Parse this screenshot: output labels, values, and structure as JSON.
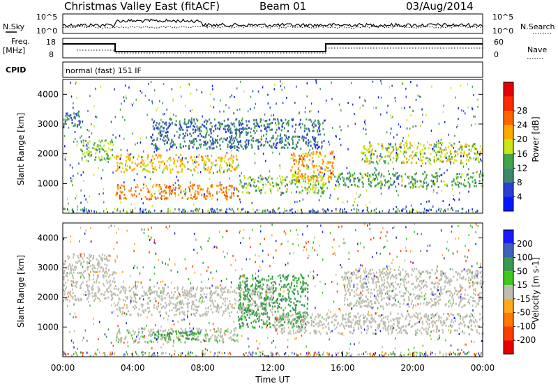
{
  "header": {
    "station": "Christmas Valley East (fitACF)",
    "beam": "Beam 01",
    "date": "03/Aug/2014"
  },
  "side_labels": {
    "nsky": "N.Sky",
    "nsearch": "N.Search",
    "freq_top": "Freq.",
    "freq_unit": "[MHz]",
    "nave": "Nave",
    "cpid": "CPID"
  },
  "noise_axis": {
    "left_top": "10^5",
    "left_bottom": "10^0",
    "right_top": "10^5",
    "right_bottom": "10^0"
  },
  "freq_axis": {
    "left_ticks": [
      "18",
      "8"
    ],
    "right_ticks": [
      "60",
      "0"
    ]
  },
  "cpid_text": "normal (fast) 151 IF",
  "colors": {
    "power_scale": [
      "#0019ff",
      "#2b3fd0",
      "#3c8a6a",
      "#41a64a",
      "#c8e619",
      "#ffaa00",
      "#ff6400",
      "#ff2a00",
      "#e60000"
    ],
    "velocity_scale": [
      "#1a1aff",
      "#3f62b8",
      "#3a9a4f",
      "#41c81e",
      "#bdbdb0",
      "#ffaa19",
      "#ff7a00",
      "#ff3c00",
      "#e60000"
    ]
  },
  "chart_data": [
    {
      "type": "heatmap",
      "panel": "power",
      "ylabel": "Slant Range [km]",
      "yticks": [
        "1000",
        "2000",
        "3000",
        "4000"
      ],
      "ylim": [
        0,
        4500
      ],
      "xlim": [
        0,
        24
      ],
      "colorbar_label": "Power [dB]",
      "colorbar_ticks": [
        "4",
        "8",
        "12",
        "16",
        "20",
        "24",
        "28"
      ],
      "colorbar_range": [
        0,
        32
      ],
      "features": [
        {
          "t0": 0.0,
          "t1": 1.0,
          "r0": 2900,
          "r1": 3500,
          "level": 8
        },
        {
          "t0": 1.0,
          "t1": 3.0,
          "r0": 1800,
          "r1": 2500,
          "level": 14
        },
        {
          "t0": 3.0,
          "t1": 10.0,
          "r0": 500,
          "r1": 1000,
          "level": 22
        },
        {
          "t0": 3.0,
          "t1": 10.0,
          "r0": 1400,
          "r1": 2000,
          "level": 18
        },
        {
          "t0": 10.0,
          "t1": 15.0,
          "r0": 700,
          "r1": 1300,
          "level": 14
        },
        {
          "t0": 13.0,
          "t1": 15.5,
          "r0": 1100,
          "r1": 2100,
          "level": 20
        },
        {
          "t0": 15.5,
          "t1": 24.0,
          "r0": 900,
          "r1": 1400,
          "level": 12
        },
        {
          "t0": 17.0,
          "t1": 24.0,
          "r0": 1700,
          "r1": 2400,
          "level": 16
        },
        {
          "t0": 5.0,
          "t1": 15.0,
          "r0": 2200,
          "r1": 3200,
          "level": 8
        }
      ]
    },
    {
      "type": "heatmap",
      "panel": "velocity",
      "ylabel": "Slant Range [km]",
      "yticks": [
        "1000",
        "2000",
        "3000",
        "4000"
      ],
      "ylim": [
        0,
        4500
      ],
      "xlim": [
        0,
        24
      ],
      "xticks": [
        "00:00",
        "04:00",
        "08:00",
        "12:00",
        "16:00",
        "20:00",
        "00:00"
      ],
      "xlabel": "Time UT",
      "colorbar_label": "Velocity [m s-1]",
      "colorbar_ticks": [
        "200",
        "100",
        "50",
        "15",
        "-15",
        "-50",
        "-100",
        "-200"
      ],
      "features": [
        {
          "t0": 0.0,
          "t1": 3.0,
          "r0": 1900,
          "r1": 3500,
          "velocity": 5
        },
        {
          "t0": 3.0,
          "t1": 10.0,
          "r0": 500,
          "r1": 1000,
          "velocity": 10
        },
        {
          "t0": 5.0,
          "t1": 8.0,
          "r0": 600,
          "r1": 900,
          "velocity": 40
        },
        {
          "t0": 3.0,
          "t1": 12.0,
          "r0": 1400,
          "r1": 2400,
          "velocity": -5
        },
        {
          "t0": 10.0,
          "t1": 14.0,
          "r0": 1000,
          "r1": 2800,
          "velocity": 40
        },
        {
          "t0": 12.0,
          "t1": 24.0,
          "r0": 800,
          "r1": 1500,
          "velocity": 0
        },
        {
          "t0": 16.0,
          "t1": 24.0,
          "r0": 1700,
          "r1": 3000,
          "velocity": 0
        }
      ]
    }
  ]
}
